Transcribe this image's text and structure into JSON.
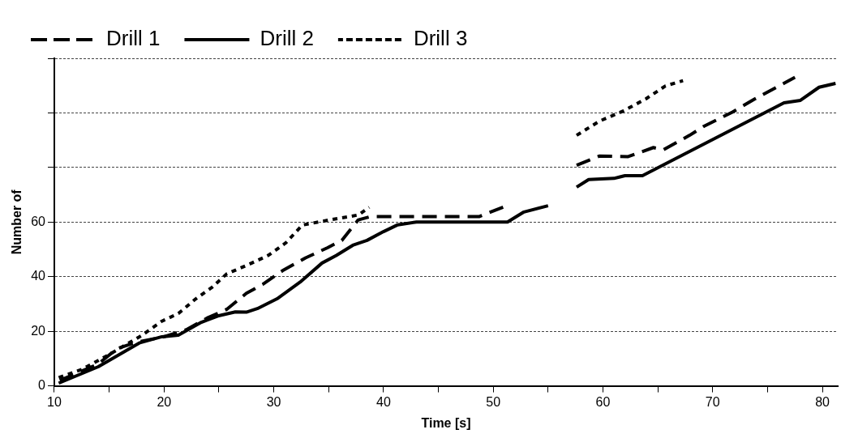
{
  "chart_data": {
    "type": "line",
    "xlabel": "Time [s]",
    "ylabel": "Number of",
    "xlim": [
      10,
      81.4
    ],
    "xticks": [
      10,
      {
        "value": 15,
        "label": null
      },
      20,
      {
        "value": 25,
        "label": null
      },
      30,
      {
        "value": 35,
        "label": null
      },
      40,
      {
        "value": 45,
        "label": null
      },
      50,
      {
        "value": 55,
        "label": null
      },
      60,
      {
        "value": 65,
        "label": null
      },
      70,
      {
        "value": 75,
        "label": null
      },
      80
    ],
    "ylim": [
      0,
      120
    ],
    "yticks": [
      0,
      20,
      40,
      60,
      {
        "value": 80,
        "label": null
      },
      {
        "value": 100,
        "label": null
      },
      {
        "value": 120,
        "label": null
      }
    ],
    "grid": "y",
    "legend": "top left",
    "marker": "none",
    "series": [
      {
        "name": "Drill 1",
        "color": "#000000",
        "line_style": "dashed",
        "x": [
          10.5,
          14,
          15.7,
          17.5,
          20,
          22,
          24,
          25.7,
          27.5,
          29,
          30.8,
          32.9,
          34.9,
          36.2,
          37.7,
          38.8,
          48.7,
          51,
          54,
          57.6,
          59.7,
          62.3,
          64.6,
          65.5,
          67.9,
          69.2,
          71.8,
          73.8,
          77.5
        ],
        "values": [
          2,
          8,
          13.6,
          16,
          18,
          20.5,
          25,
          28,
          33.9,
          37.2,
          42.2,
          46.9,
          50.6,
          53.3,
          60.8,
          62,
          62,
          65.6,
          null,
          80.8,
          84.2,
          84,
          87.3,
          86.5,
          91.8,
          95.1,
          100.3,
          105,
          113
        ]
      },
      {
        "name": "Drill 2",
        "color": "#000000",
        "line_style": "solid",
        "x": [
          10.4,
          14,
          17.8,
          19.8,
          21.3,
          23.4,
          24.9,
          26.5,
          27.5,
          28.5,
          30.3,
          32.4,
          34.4,
          35.7,
          37.2,
          38.5,
          40,
          41.3,
          43,
          51.3,
          52.8,
          55,
          56.3,
          57.6,
          58.7,
          61,
          62,
          63.6,
          76.5,
          78,
          79.7,
          81.2
        ],
        "values": [
          1,
          7,
          15.8,
          18,
          18.6,
          23.3,
          25.6,
          27.1,
          27,
          28.3,
          31.9,
          38,
          45,
          47.8,
          51.5,
          53.3,
          56.5,
          59,
          60,
          60,
          63.7,
          66,
          null,
          72.8,
          75.6,
          76,
          77,
          77,
          103.7,
          104.6,
          109.4,
          110.8
        ]
      },
      {
        "name": "Drill 3",
        "color": "#000000",
        "line_style": "dotted",
        "x": [
          10.4,
          12.5,
          15,
          17.9,
          19.8,
          21.3,
          22.9,
          24.4,
          25.7,
          27.5,
          29.5,
          31.1,
          32.6,
          35.1,
          37.7,
          38.7,
          48,
          57.6,
          59.7,
          61.8,
          63.9,
          65.7,
          67.3
        ],
        "values": [
          3,
          6,
          11.5,
          18.3,
          23.7,
          26.5,
          31.9,
          36.2,
          41,
          44.1,
          47.8,
          52.4,
          58.9,
          60.8,
          62.6,
          65.4,
          null,
          91.8,
          97,
          100.6,
          105.1,
          109.9,
          111.8
        ]
      }
    ]
  }
}
